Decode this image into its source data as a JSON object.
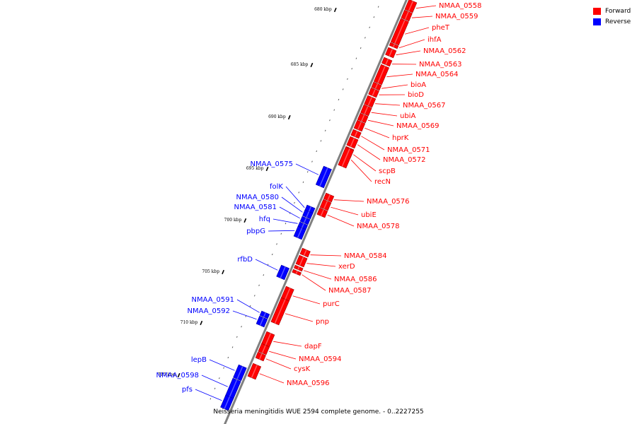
{
  "title": "Neisseria meningitidis WUE 2594 complete genome. - 0..2227255",
  "legend": [
    {
      "label": "Forward",
      "color": "#ff0000"
    },
    {
      "label": "Reverse",
      "color": "#0000ff"
    }
  ],
  "colors": {
    "forward": "#ff0000",
    "reverse": "#0000ff",
    "backbone": "#808080"
  },
  "ticks": [
    "680 kbp",
    "685 kbp",
    "690 kbp",
    "695 kbp",
    "700 kbp",
    "705 kbp",
    "710 kbp",
    "715 kbp"
  ],
  "genes": [
    {
      "name": "NMAA_0558",
      "strand": "forward"
    },
    {
      "name": "NMAA_0559",
      "strand": "forward"
    },
    {
      "name": "pheT",
      "strand": "forward"
    },
    {
      "name": "ihfA",
      "strand": "forward"
    },
    {
      "name": "NMAA_0562",
      "strand": "forward"
    },
    {
      "name": "NMAA_0563",
      "strand": "forward"
    },
    {
      "name": "NMAA_0564",
      "strand": "forward"
    },
    {
      "name": "bioA",
      "strand": "forward"
    },
    {
      "name": "bioD",
      "strand": "forward"
    },
    {
      "name": "NMAA_0567",
      "strand": "forward"
    },
    {
      "name": "ubiA",
      "strand": "forward"
    },
    {
      "name": "NMAA_0569",
      "strand": "forward"
    },
    {
      "name": "hprK",
      "strand": "forward"
    },
    {
      "name": "NMAA_0571",
      "strand": "forward"
    },
    {
      "name": "NMAA_0572",
      "strand": "forward"
    },
    {
      "name": "scpB",
      "strand": "forward"
    },
    {
      "name": "recN",
      "strand": "forward"
    },
    {
      "name": "NMAA_0575",
      "strand": "reverse"
    },
    {
      "name": "NMAA_0576",
      "strand": "forward"
    },
    {
      "name": "ubiE",
      "strand": "forward"
    },
    {
      "name": "NMAA_0578",
      "strand": "forward"
    },
    {
      "name": "folK",
      "strand": "reverse"
    },
    {
      "name": "NMAA_0580",
      "strand": "reverse"
    },
    {
      "name": "NMAA_0581",
      "strand": "reverse"
    },
    {
      "name": "hfq",
      "strand": "reverse"
    },
    {
      "name": "pbpG",
      "strand": "reverse"
    },
    {
      "name": "NMAA_0584",
      "strand": "forward"
    },
    {
      "name": "xerD",
      "strand": "forward"
    },
    {
      "name": "NMAA_0586",
      "strand": "forward"
    },
    {
      "name": "NMAA_0587",
      "strand": "forward"
    },
    {
      "name": "rfbD",
      "strand": "reverse"
    },
    {
      "name": "purC",
      "strand": "forward"
    },
    {
      "name": "pnp",
      "strand": "forward"
    },
    {
      "name": "NMAA_0591",
      "strand": "reverse"
    },
    {
      "name": "NMAA_0592",
      "strand": "reverse"
    },
    {
      "name": "dapF",
      "strand": "forward"
    },
    {
      "name": "NMAA_0594",
      "strand": "forward"
    },
    {
      "name": "cysK",
      "strand": "forward"
    },
    {
      "name": "NMAA_0596",
      "strand": "forward"
    },
    {
      "name": "lepB",
      "strand": "reverse"
    },
    {
      "name": "NMAA_0598",
      "strand": "reverse"
    },
    {
      "name": "pfs",
      "strand": "reverse"
    }
  ]
}
